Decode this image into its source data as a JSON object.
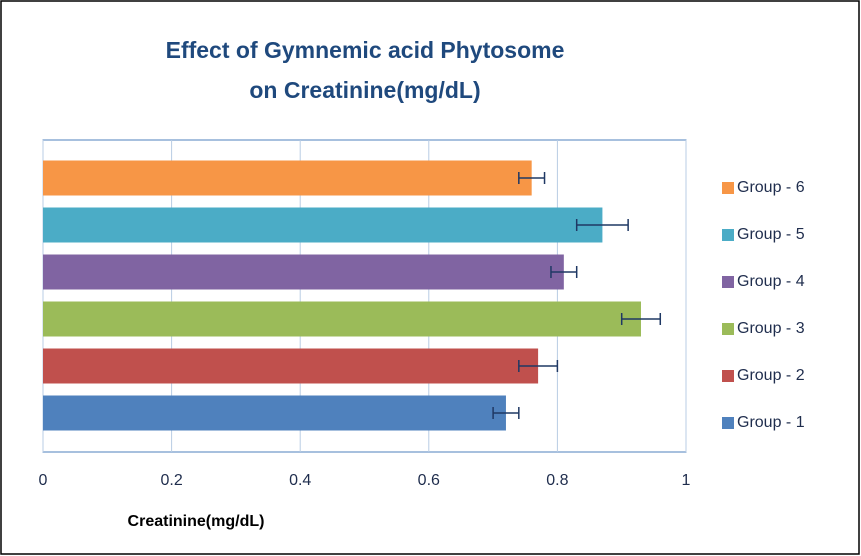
{
  "chart_data": {
    "type": "bar",
    "orientation": "horizontal",
    "title": "Effect of Gymnemic acid Phytosome on Creatinine(mg/dL)",
    "x_label": "Creatinine(mg/dL)",
    "series": [
      {
        "name": "Group - 1",
        "color": "#4f81bd",
        "values": [
          0.72
        ],
        "errors": [
          0.02
        ]
      },
      {
        "name": "Group - 2",
        "color": "#c0504d",
        "values": [
          0.77
        ],
        "errors": [
          0.03
        ]
      },
      {
        "name": "Group - 3",
        "color": "#9bbb59",
        "values": [
          0.93
        ],
        "errors": [
          0.03
        ]
      },
      {
        "name": "Group - 4",
        "color": "#8064a2",
        "values": [
          0.81
        ],
        "errors": [
          0.02
        ]
      },
      {
        "name": "Group - 5",
        "color": "#4bacc6",
        "values": [
          0.87
        ],
        "errors": [
          0.04
        ]
      },
      {
        "name": "Group - 6",
        "color": "#f79646",
        "values": [
          0.76
        ],
        "errors": [
          0.02
        ]
      }
    ],
    "xlim": [
      0,
      1
    ],
    "xticks": [
      0,
      0.2,
      0.4,
      0.6,
      0.8,
      1
    ],
    "grid": true,
    "legend": "right"
  }
}
